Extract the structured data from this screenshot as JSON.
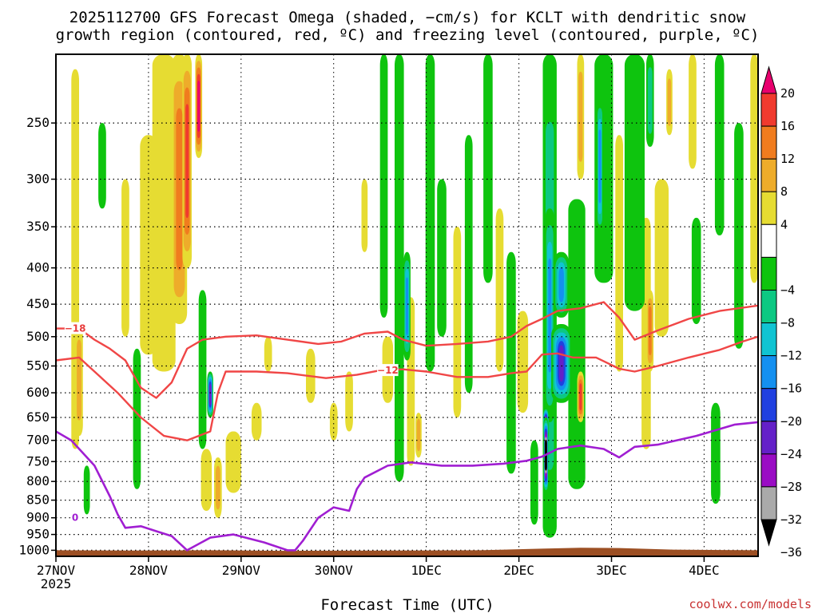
{
  "chart_data": {
    "type": "heatmap",
    "title_lines": [
      "2025112700 GFS Forecast Omega (shaded, −cm/s) for KCLT with dendritic snow",
      "growth region (contoured, red, ºC) and freezing level (contoured, purple, ºC)"
    ],
    "xlabel": "Forecast Time (UTC)",
    "x_ticks": [
      {
        "label": "27NOV",
        "sub": "2025",
        "hour": 0
      },
      {
        "label": "28NOV",
        "sub": "",
        "hour": 24
      },
      {
        "label": "29NOV",
        "sub": "",
        "hour": 48
      },
      {
        "label": "30NOV",
        "sub": "",
        "hour": 72
      },
      {
        "label": "1DEC",
        "sub": "",
        "hour": 96
      },
      {
        "label": "2DEC",
        "sub": "",
        "hour": 120
      },
      {
        "label": "3DEC",
        "sub": "",
        "hour": 144
      },
      {
        "label": "4DEC",
        "sub": "",
        "hour": 168
      }
    ],
    "x_range_hours": [
      0,
      182
    ],
    "y_ticks": [
      250,
      300,
      350,
      400,
      450,
      500,
      550,
      600,
      650,
      700,
      750,
      800,
      850,
      900,
      950,
      1000
    ],
    "y_range_hpa": [
      200,
      1020
    ],
    "colorbar": {
      "tick_labels": [
        "20",
        "16",
        "12",
        "8",
        "4",
        "−4",
        "−8",
        "−12",
        "−16",
        "−20",
        "−24",
        "−28",
        "−32",
        "−36"
      ],
      "bins": [
        {
          "min": 20,
          "max": 24,
          "color": "#e8006e"
        },
        {
          "min": 16,
          "max": 20,
          "color": "#f03a2e"
        },
        {
          "min": 12,
          "max": 16,
          "color": "#f07c1e"
        },
        {
          "min": 8,
          "max": 12,
          "color": "#eeac2a"
        },
        {
          "min": 4,
          "max": 8,
          "color": "#e6dc32"
        },
        {
          "min": -4,
          "max": 4,
          "color": "#ffffff"
        },
        {
          "min": -8,
          "max": -4,
          "color": "#0ec40e"
        },
        {
          "min": -12,
          "max": -8,
          "color": "#0cc882"
        },
        {
          "min": -16,
          "max": -12,
          "color": "#10c4d2"
        },
        {
          "min": -20,
          "max": -16,
          "color": "#1490f0"
        },
        {
          "min": -24,
          "max": -20,
          "color": "#2040e0"
        },
        {
          "min": -28,
          "max": -24,
          "color": "#6420c8"
        },
        {
          "min": -32,
          "max": -28,
          "color": "#9a0cc4"
        },
        {
          "min": -36,
          "max": -32,
          "color": "#aaaaaa"
        },
        {
          "min": -40,
          "max": -36,
          "color": "#000000"
        }
      ]
    },
    "omega_features": [
      {
        "h": 5,
        "p0": 210,
        "p1": 720,
        "w": 1.0,
        "v": 6
      },
      {
        "h": 6,
        "p0": 480,
        "p1": 690,
        "w": 1.0,
        "v": 12
      },
      {
        "h": 8,
        "p0": 760,
        "p1": 890,
        "w": 0.8,
        "v": -6
      },
      {
        "h": 12,
        "p0": 250,
        "p1": 330,
        "w": 1.0,
        "v": -6
      },
      {
        "h": 18,
        "p0": 300,
        "p1": 500,
        "w": 1.0,
        "v": 5
      },
      {
        "h": 21,
        "p0": 520,
        "p1": 820,
        "w": 1.0,
        "v": -6
      },
      {
        "h": 24,
        "p0": 260,
        "p1": 530,
        "w": 2.2,
        "v": 6
      },
      {
        "h": 28,
        "p0": 200,
        "p1": 560,
        "w": 3.0,
        "v": 8
      },
      {
        "h": 32,
        "p0": 200,
        "p1": 480,
        "w": 2.0,
        "v": 14
      },
      {
        "h": 34,
        "p0": 200,
        "p1": 400,
        "w": 1.2,
        "v": 18
      },
      {
        "h": 37,
        "p0": 200,
        "p1": 280,
        "w": 0.9,
        "v": 22
      },
      {
        "h": 38,
        "p0": 430,
        "p1": 720,
        "w": 1.0,
        "v": -6
      },
      {
        "h": 40,
        "p0": 560,
        "p1": 650,
        "w": 0.8,
        "v": -26
      },
      {
        "h": 39,
        "p0": 720,
        "p1": 880,
        "w": 1.4,
        "v": 5
      },
      {
        "h": 42,
        "p0": 740,
        "p1": 900,
        "w": 1.0,
        "v": 10
      },
      {
        "h": 46,
        "p0": 680,
        "p1": 830,
        "w": 2.0,
        "v": 5
      },
      {
        "h": 52,
        "p0": 620,
        "p1": 700,
        "w": 1.3,
        "v": 5
      },
      {
        "h": 55,
        "p0": 500,
        "p1": 560,
        "w": 1.0,
        "v": 5
      },
      {
        "h": 66,
        "p0": 520,
        "p1": 620,
        "w": 1.2,
        "v": 5
      },
      {
        "h": 72,
        "p0": 620,
        "p1": 700,
        "w": 1.0,
        "v": 6
      },
      {
        "h": 76,
        "p0": 560,
        "p1": 680,
        "w": 1.0,
        "v": 5
      },
      {
        "h": 80,
        "p0": 300,
        "p1": 380,
        "w": 0.8,
        "v": 5
      },
      {
        "h": 85,
        "p0": 200,
        "p1": 470,
        "w": 1.0,
        "v": -6
      },
      {
        "h": 86,
        "p0": 500,
        "p1": 620,
        "w": 1.4,
        "v": 6
      },
      {
        "h": 89,
        "p0": 200,
        "p1": 800,
        "w": 1.2,
        "v": -8
      },
      {
        "h": 91,
        "p0": 380,
        "p1": 540,
        "w": 0.9,
        "v": -18
      },
      {
        "h": 92,
        "p0": 440,
        "p1": 760,
        "w": 1.0,
        "v": 8
      },
      {
        "h": 94,
        "p0": 640,
        "p1": 740,
        "w": 0.8,
        "v": 12
      },
      {
        "h": 97,
        "p0": 200,
        "p1": 560,
        "w": 1.2,
        "v": -6
      },
      {
        "h": 100,
        "p0": 300,
        "p1": 500,
        "w": 1.2,
        "v": -7
      },
      {
        "h": 104,
        "p0": 350,
        "p1": 650,
        "w": 1.0,
        "v": 5
      },
      {
        "h": 107,
        "p0": 260,
        "p1": 600,
        "w": 1.0,
        "v": -6
      },
      {
        "h": 112,
        "p0": 200,
        "p1": 420,
        "w": 1.2,
        "v": -6
      },
      {
        "h": 115,
        "p0": 330,
        "p1": 560,
        "w": 1.0,
        "v": 5
      },
      {
        "h": 118,
        "p0": 380,
        "p1": 780,
        "w": 1.2,
        "v": -6
      },
      {
        "h": 121,
        "p0": 460,
        "p1": 640,
        "w": 1.4,
        "v": 8
      },
      {
        "h": 124,
        "p0": 700,
        "p1": 920,
        "w": 1.0,
        "v": -6
      },
      {
        "h": 128,
        "p0": 200,
        "p1": 960,
        "w": 1.8,
        "v": -12
      },
      {
        "h": 128,
        "p0": 330,
        "p1": 660,
        "w": 1.2,
        "v": -18
      },
      {
        "h": 127,
        "p0": 650,
        "p1": 830,
        "w": 0.6,
        "v": -38
      },
      {
        "h": 127,
        "p0": 630,
        "p1": 700,
        "w": 0.8,
        "v": -30
      },
      {
        "h": 131,
        "p0": 480,
        "p1": 620,
        "w": 2.6,
        "v": -26
      },
      {
        "h": 131,
        "p0": 380,
        "p1": 470,
        "w": 2.0,
        "v": -20
      },
      {
        "h": 136,
        "p0": 200,
        "p1": 300,
        "w": 0.9,
        "v": 10
      },
      {
        "h": 136,
        "p0": 560,
        "p1": 660,
        "w": 0.9,
        "v": 20
      },
      {
        "h": 135,
        "p0": 320,
        "p1": 820,
        "w": 2.2,
        "v": -6
      },
      {
        "h": 142,
        "p0": 200,
        "p1": 420,
        "w": 2.4,
        "v": -7
      },
      {
        "h": 141,
        "p0": 230,
        "p1": 360,
        "w": 0.8,
        "v": -18
      },
      {
        "h": 146,
        "p0": 260,
        "p1": 560,
        "w": 1.0,
        "v": 5
      },
      {
        "h": 150,
        "p0": 200,
        "p1": 460,
        "w": 2.6,
        "v": -7
      },
      {
        "h": 154,
        "p0": 200,
        "p1": 270,
        "w": 1.0,
        "v": -12
      },
      {
        "h": 153,
        "p0": 340,
        "p1": 720,
        "w": 1.2,
        "v": 6
      },
      {
        "h": 154,
        "p0": 430,
        "p1": 560,
        "w": 0.9,
        "v": 14
      },
      {
        "h": 157,
        "p0": 300,
        "p1": 500,
        "w": 1.8,
        "v": 5
      },
      {
        "h": 159,
        "p0": 210,
        "p1": 260,
        "w": 0.8,
        "v": 10
      },
      {
        "h": 165,
        "p0": 200,
        "p1": 290,
        "w": 1.0,
        "v": 5
      },
      {
        "h": 166,
        "p0": 340,
        "p1": 480,
        "w": 1.2,
        "v": -6
      },
      {
        "h": 172,
        "p0": 200,
        "p1": 360,
        "w": 1.2,
        "v": -7
      },
      {
        "h": 171,
        "p0": 620,
        "p1": 860,
        "w": 1.2,
        "v": -6
      },
      {
        "h": 177,
        "p0": 250,
        "p1": 520,
        "w": 1.2,
        "v": -7
      },
      {
        "h": 181,
        "p0": 200,
        "p1": 420,
        "w": 1.0,
        "v": 5
      }
    ],
    "dgz_contours": [
      {
        "label": "−18",
        "label_hour": 5,
        "label_p": 487,
        "points": [
          [
            0,
            487
          ],
          [
            6,
            487
          ],
          [
            10,
            505
          ],
          [
            14,
            520
          ],
          [
            18,
            540
          ],
          [
            22,
            590
          ],
          [
            26,
            610
          ],
          [
            30,
            580
          ],
          [
            34,
            520
          ],
          [
            38,
            505
          ],
          [
            44,
            500
          ],
          [
            52,
            498
          ],
          [
            60,
            505
          ],
          [
            68,
            512
          ],
          [
            74,
            508
          ],
          [
            80,
            495
          ],
          [
            86,
            492
          ],
          [
            90,
            505
          ],
          [
            96,
            515
          ],
          [
            104,
            512
          ],
          [
            112,
            508
          ],
          [
            118,
            500
          ],
          [
            122,
            483
          ],
          [
            126,
            472
          ],
          [
            130,
            460
          ],
          [
            136,
            456
          ],
          [
            142,
            447
          ],
          [
            146,
            470
          ],
          [
            150,
            505
          ],
          [
            156,
            490
          ],
          [
            164,
            472
          ],
          [
            172,
            460
          ],
          [
            182,
            452
          ]
        ]
      },
      {
        "label": "−12",
        "label_hour": 86,
        "label_p": 558,
        "points": [
          [
            0,
            540
          ],
          [
            6,
            535
          ],
          [
            10,
            560
          ],
          [
            16,
            600
          ],
          [
            22,
            650
          ],
          [
            28,
            690
          ],
          [
            34,
            700
          ],
          [
            40,
            680
          ],
          [
            42,
            600
          ],
          [
            44,
            560
          ],
          [
            52,
            560
          ],
          [
            60,
            563
          ],
          [
            70,
            572
          ],
          [
            78,
            566
          ],
          [
            84,
            558
          ],
          [
            90,
            556
          ],
          [
            96,
            560
          ],
          [
            104,
            570
          ],
          [
            112,
            570
          ],
          [
            118,
            563
          ],
          [
            122,
            560
          ],
          [
            126,
            530
          ],
          [
            130,
            528
          ],
          [
            134,
            535
          ],
          [
            140,
            535
          ],
          [
            146,
            555
          ],
          [
            150,
            560
          ],
          [
            156,
            550
          ],
          [
            164,
            535
          ],
          [
            172,
            522
          ],
          [
            178,
            508
          ],
          [
            182,
            500
          ]
        ]
      }
    ],
    "freezing_level": {
      "label": "0",
      "label_hour": 5,
      "label_p": 900,
      "points": [
        [
          0,
          680
        ],
        [
          4,
          700
        ],
        [
          10,
          760
        ],
        [
          14,
          840
        ],
        [
          16,
          890
        ],
        [
          18,
          930
        ],
        [
          22,
          925
        ],
        [
          26,
          940
        ],
        [
          30,
          955
        ],
        [
          34,
          1000
        ],
        [
          40,
          960
        ],
        [
          46,
          950
        ],
        [
          54,
          975
        ],
        [
          60,
          1000
        ],
        [
          62,
          1000
        ],
        [
          64,
          970
        ],
        [
          68,
          900
        ],
        [
          72,
          870
        ],
        [
          76,
          880
        ],
        [
          78,
          820
        ],
        [
          80,
          790
        ],
        [
          86,
          760
        ],
        [
          92,
          752
        ],
        [
          100,
          760
        ],
        [
          108,
          760
        ],
        [
          116,
          755
        ],
        [
          122,
          748
        ],
        [
          126,
          738
        ],
        [
          130,
          720
        ],
        [
          136,
          712
        ],
        [
          142,
          720
        ],
        [
          146,
          740
        ],
        [
          150,
          715
        ],
        [
          156,
          710
        ],
        [
          166,
          690
        ],
        [
          176,
          665
        ],
        [
          182,
          660
        ]
      ]
    },
    "freezing_level_label": "0"
  },
  "credit": "coolwx.com/models"
}
